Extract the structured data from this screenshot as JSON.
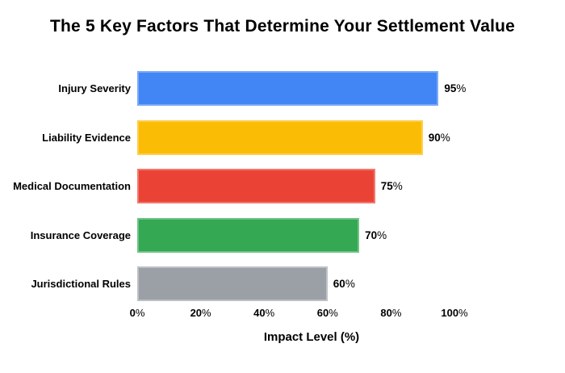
{
  "chart_data": {
    "type": "bar",
    "orientation": "horizontal",
    "title": "The 5 Key Factors That Determine Your Settlement Value",
    "categories": [
      "Injury Severity",
      "Liability Evidence",
      "Medical Documentation",
      "Insurance Coverage",
      "Jurisdictional Rules"
    ],
    "values": [
      95,
      90,
      75,
      70,
      60
    ],
    "value_labels": [
      "95%",
      "90%",
      "75%",
      "70%",
      "60%"
    ],
    "bar_colors": [
      "#4285F4",
      "#FBBC05",
      "#EA4335",
      "#34A853",
      "#9AA0A6"
    ],
    "bar_border_colors": [
      "#7BAAF7",
      "#FCCE4D",
      "#F0796E",
      "#71C287",
      "#BDC1C6"
    ],
    "xlabel": "Impact Level (%)",
    "x_ticks": [
      "0%",
      "20%",
      "40%",
      "60%",
      "80%",
      "100%"
    ],
    "x_tick_values": [
      0,
      20,
      40,
      60,
      80,
      100
    ],
    "xlim": [
      0,
      100
    ],
    "grid": false,
    "legend": "none",
    "background_color": "#FFFFFF",
    "text_color": "#000000"
  }
}
